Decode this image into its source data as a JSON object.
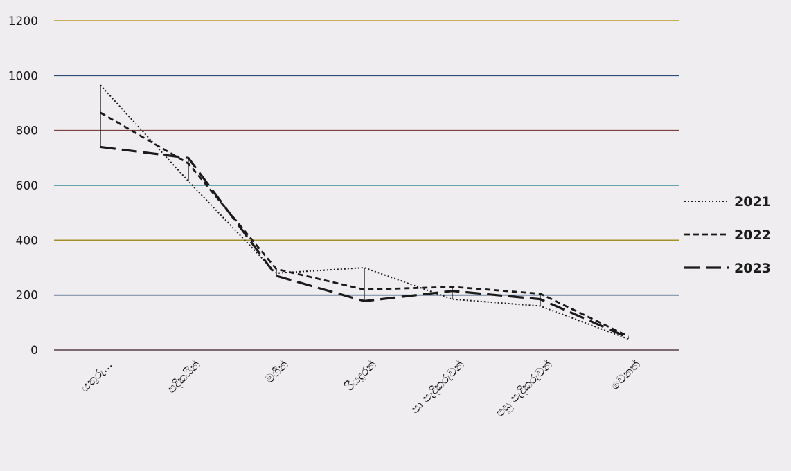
{
  "chart_data": {
    "type": "line",
    "title": "",
    "xlabel": "",
    "ylabel": "",
    "ylim": [
      0,
      1200
    ],
    "yticks": [
      0,
      200,
      400,
      600,
      800,
      1000,
      1200
    ],
    "grid": true,
    "legend_position": "right",
    "categories": [
      "යතුරු...",
      "පදිකයින්",
      "මගීන්",
      "රියදුරන්",
      "පා පැදිකරුවන්",
      "පසු පැදිකරුවන්",
      "වෙනත්"
    ],
    "series": [
      {
        "name": "2021",
        "style": "dotted",
        "values": [
          965,
          615,
          280,
          300,
          185,
          160,
          40
        ]
      },
      {
        "name": "2022",
        "style": "dashed",
        "values": [
          865,
          680,
          295,
          220,
          230,
          205,
          50
        ]
      },
      {
        "name": "2023",
        "style": "long-dash",
        "values": [
          740,
          700,
          270,
          178,
          215,
          185,
          45
        ]
      }
    ],
    "gridline_colors": [
      "#5c3f49",
      "#2f4e7a",
      "#a4902a",
      "#3a8a9c",
      "#7a3f3f",
      "#2f4e7a",
      "#b89a2a"
    ]
  }
}
